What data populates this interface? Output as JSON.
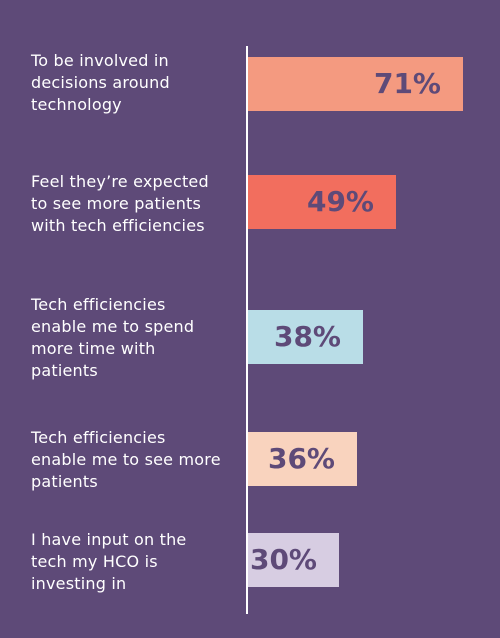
{
  "chart_data": {
    "type": "bar",
    "orientation": "horizontal",
    "categories": [
      "To be involved in\ndecisions around\ntechnology",
      "Feel they’re expected\nto see more patients\nwith tech efficiencies",
      "Tech efficiencies\nenable me to spend\nmore time with\npatients",
      "Tech efficiencies\nenable me to see more\npatients",
      "I have input on the\ntech my HCO is\ninvesting in"
    ],
    "values": [
      71,
      49,
      38,
      36,
      30
    ],
    "value_labels": [
      "71%",
      "49%",
      "38%",
      "36%",
      "30%"
    ],
    "bar_colors": [
      "#f49a80",
      "#f26e5e",
      "#b9dde7",
      "#f9d3be",
      "#d7cde2"
    ],
    "background_color": "#5e4a78",
    "value_label_color": "#5e4a78",
    "xlim": [
      0,
      71
    ],
    "grid": false,
    "legend": "none"
  }
}
